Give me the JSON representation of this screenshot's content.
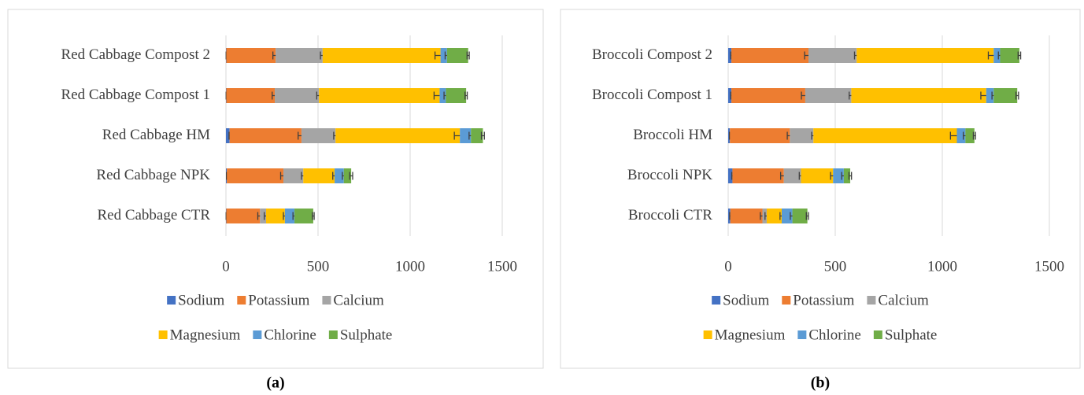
{
  "chart_data": [
    {
      "type": "stacked-bar",
      "panel_label": "(a)",
      "categories": [
        "Red Cabbage CTR",
        "Red Cabbage NPK",
        "Red Cabbage HM",
        "Red Cabbage Compost 1",
        "Red Cabbage Compost 2"
      ],
      "series": [
        {
          "name": "Sodium",
          "color": "#4472c4",
          "values": [
            2,
            5,
            20,
            2,
            2
          ],
          "errors": [
            1,
            2,
            3,
            1,
            1
          ]
        },
        {
          "name": "Potassium",
          "color": "#ed7d31",
          "values": [
            183,
            307,
            390,
            263,
            268
          ],
          "errors": [
            12,
            15,
            18,
            14,
            15
          ]
        },
        {
          "name": "Calcium",
          "color": "#a5a5a5",
          "values": [
            33,
            108,
            185,
            240,
            255
          ],
          "errors": [
            10,
            10,
            10,
            12,
            12
          ]
        },
        {
          "name": "Magnesium",
          "color": "#ffc000",
          "values": [
            102,
            170,
            675,
            655,
            640
          ],
          "errors": [
            8,
            10,
            30,
            30,
            30
          ]
        },
        {
          "name": "Chlorine",
          "color": "#5b9bd5",
          "values": [
            52,
            50,
            60,
            34,
            35
          ],
          "errors": [
            8,
            8,
            10,
            10,
            10
          ]
        },
        {
          "name": "Sulphate",
          "color": "#70ad47",
          "values": [
            102,
            40,
            65,
            110,
            115
          ],
          "errors": [
            5,
            8,
            8,
            6,
            6
          ]
        }
      ],
      "xlim": [
        0,
        1500
      ],
      "xticks": [
        0,
        500,
        1000,
        1500
      ],
      "grid": true
    },
    {
      "type": "stacked-bar",
      "panel_label": "(b)",
      "categories": [
        "Broccoli CTR",
        "Broccoli NPK",
        "Broccoli HM",
        "Broccoli Compost 1",
        "Broccoli Compost 2"
      ],
      "series": [
        {
          "name": "Sodium",
          "color": "#4472c4",
          "values": [
            10,
            20,
            8,
            15,
            15
          ],
          "errors": [
            3,
            3,
            2,
            3,
            3
          ]
        },
        {
          "name": "Potassium",
          "color": "#ed7d31",
          "values": [
            150,
            240,
            280,
            345,
            360
          ],
          "errors": [
            10,
            15,
            12,
            18,
            18
          ]
        },
        {
          "name": "Calcium",
          "color": "#a5a5a5",
          "values": [
            20,
            80,
            110,
            215,
            225
          ],
          "errors": [
            8,
            8,
            8,
            10,
            10
          ]
        },
        {
          "name": "Magnesium",
          "color": "#ffc000",
          "values": [
            70,
            150,
            670,
            630,
            640
          ],
          "errors": [
            8,
            12,
            30,
            25,
            25
          ]
        },
        {
          "name": "Chlorine",
          "color": "#5b9bd5",
          "values": [
            50,
            50,
            40,
            35,
            30
          ],
          "errors": [
            10,
            10,
            10,
            8,
            8
          ]
        },
        {
          "name": "Sulphate",
          "color": "#70ad47",
          "values": [
            70,
            30,
            42,
            110,
            90
          ],
          "errors": [
            5,
            6,
            5,
            6,
            6
          ]
        }
      ],
      "xlim": [
        0,
        1500
      ],
      "xticks": [
        0,
        500,
        1000,
        1500
      ],
      "grid": true
    }
  ]
}
